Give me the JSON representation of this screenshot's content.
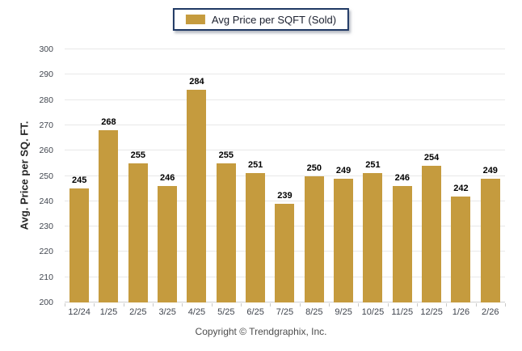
{
  "legend": {
    "label": "Avg Price per SQFT (Sold)",
    "swatch_color": "#C59B3E",
    "border_color": "#1F3864"
  },
  "y_axis": {
    "title": "Avg. Price per SQ. FT."
  },
  "footer": {
    "text": "Copyright © Trendgraphix, Inc."
  },
  "colors": {
    "bar": "#C59B3E",
    "gridline": "#E8E8E8",
    "axis_line": "#D0D0D0",
    "tick_label": "#40454E",
    "value_label": "#000000",
    "legend_border": "#1F3864"
  },
  "chart_data": {
    "type": "bar",
    "title": "",
    "categories": [
      "12/24",
      "1/25",
      "2/25",
      "3/25",
      "4/25",
      "5/25",
      "6/25",
      "7/25",
      "8/25",
      "9/25",
      "10/25",
      "11/25",
      "12/25",
      "1/26",
      "2/26"
    ],
    "values": [
      245,
      268,
      255,
      246,
      284,
      255,
      251,
      239,
      250,
      249,
      251,
      246,
      254,
      242,
      249
    ],
    "series_name": "Avg Price per SQFT (Sold)",
    "xlabel": "",
    "ylabel": "Avg. Price per SQ. FT.",
    "ylim": [
      200,
      300
    ],
    "ytick_step": 10,
    "grid": true,
    "legend_position": "top-center",
    "bar_color": "#C59B3E",
    "value_labels_shown": true
  }
}
